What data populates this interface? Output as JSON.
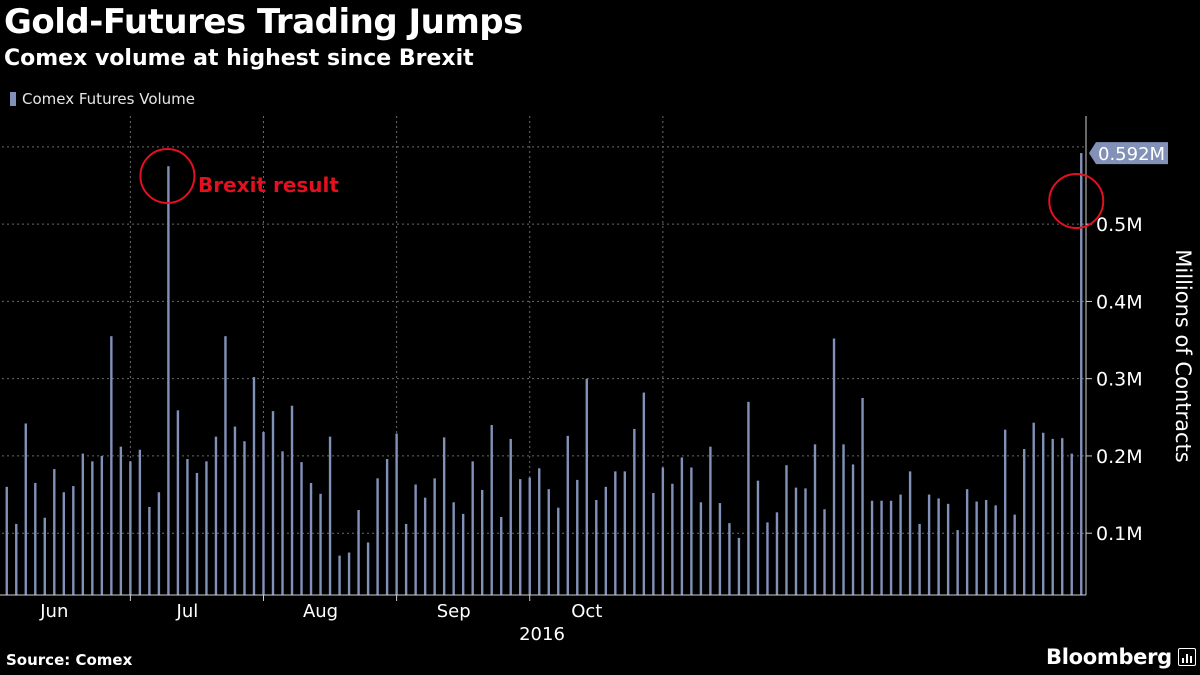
{
  "header": {
    "title": "Gold-Futures Trading Jumps",
    "subtitle": "Comex volume at highest since Brexit"
  },
  "colors": {
    "background": "#000000",
    "bar": "#8191b8",
    "grid": "#6a6a6a",
    "annotation": "#e3101f",
    "text": "#ffffff"
  },
  "footer": {
    "source": "Source: Comex",
    "brand": "Bloomberg"
  },
  "chart_data": {
    "type": "bar",
    "title": "Gold-Futures Trading Jumps",
    "subtitle": "Comex volume at highest since Brexit",
    "ylabel": "Millions of Contracts",
    "xlabel": "2016",
    "ylim": [
      0.02,
      0.64
    ],
    "y_ticks": [
      {
        "value": 0.1,
        "label": "0.1M"
      },
      {
        "value": 0.2,
        "label": "0.2M"
      },
      {
        "value": 0.3,
        "label": "0.3M"
      },
      {
        "value": 0.4,
        "label": "0.4M"
      },
      {
        "value": 0.5,
        "label": "0.5M"
      }
    ],
    "x_ticks": [
      {
        "label": "Jun",
        "index": 5
      },
      {
        "label": "Jul",
        "index": 19
      },
      {
        "label": "Aug",
        "index": 33
      },
      {
        "label": "Sep",
        "index": 47
      },
      {
        "label": "Oct",
        "index": 61
      }
    ],
    "x_year_label": "2016",
    "grid": true,
    "legend": {
      "position": "top-left"
    },
    "series": [
      {
        "name": "Comex Futures Volume",
        "values": [
          0.16,
          0.112,
          0.242,
          0.165,
          0.12,
          0.183,
          0.153,
          0.161,
          0.203,
          0.193,
          0.2,
          0.355,
          0.212,
          0.193,
          0.208,
          0.134,
          0.153,
          0.575,
          0.259,
          0.196,
          0.178,
          0.193,
          0.225,
          0.355,
          0.238,
          0.219,
          0.302,
          0.231,
          0.258,
          0.206,
          0.265,
          0.192,
          0.165,
          0.151,
          0.225,
          0.071,
          0.075,
          0.13,
          0.088,
          0.171,
          0.196,
          0.229,
          0.112,
          0.163,
          0.146,
          0.171,
          0.224,
          0.14,
          0.125,
          0.193,
          0.156,
          0.24,
          0.121,
          0.222,
          0.17,
          0.172,
          0.184,
          0.157,
          0.133,
          0.226,
          0.169,
          0.3,
          0.143,
          0.16,
          0.18,
          0.18,
          0.235,
          0.282,
          0.152,
          0.185,
          0.164,
          0.198,
          0.185,
          0.14,
          0.212,
          0.139,
          0.113,
          0.094,
          0.27,
          0.168,
          0.114,
          0.127,
          0.188,
          0.159,
          0.158,
          0.215,
          0.131,
          0.352,
          0.215,
          0.189,
          0.275,
          0.142,
          0.142,
          0.142,
          0.15,
          0.18,
          0.112,
          0.15,
          0.145,
          0.138,
          0.104,
          0.157,
          0.141,
          0.143,
          0.136,
          0.234,
          0.124,
          0.209,
          0.243,
          0.23,
          0.222,
          0.223,
          0.203,
          0.592
        ]
      }
    ],
    "annotations": [
      {
        "label": "Brexit result",
        "bar_index": 17,
        "value": 0.575
      },
      {
        "label": "",
        "bar_index": 113,
        "value": 0.592
      }
    ],
    "last_value_label": "0.592M"
  }
}
